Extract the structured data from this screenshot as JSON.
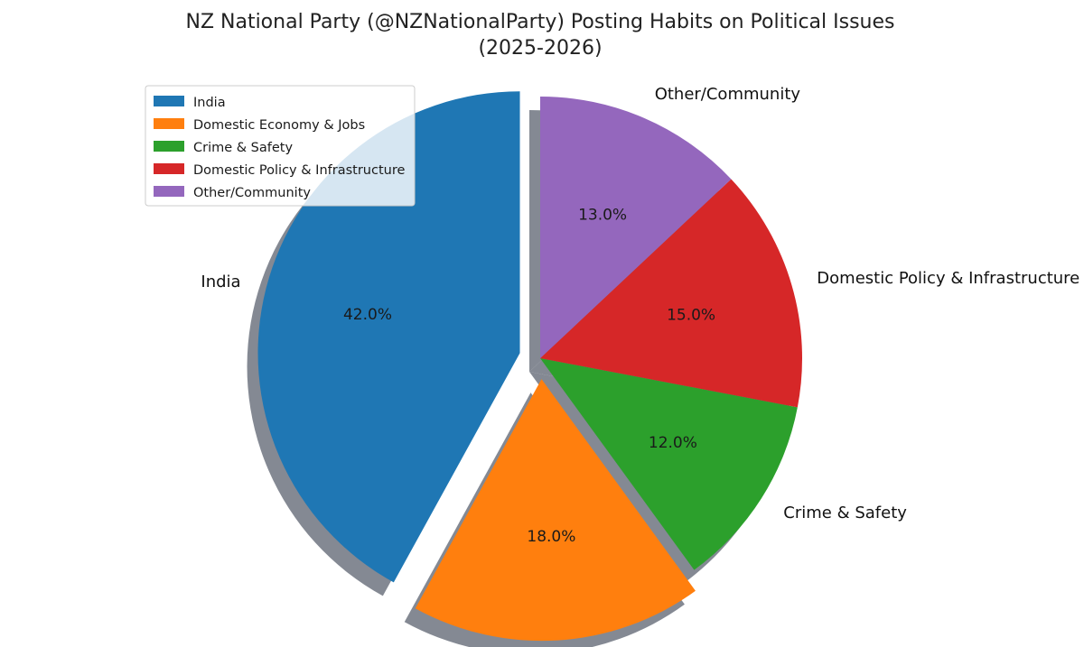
{
  "chart_data": {
    "type": "pie",
    "title_lines": [
      "NZ National Party (@NZNationalParty) Posting Habits on Political Issues",
      "(2025-2026)"
    ],
    "categories": [
      "India",
      "Domestic Economy & Jobs",
      "Crime & Safety",
      "Domestic Policy & Infrastructure",
      "Other/Community"
    ],
    "values": [
      42.0,
      18.0,
      12.0,
      15.0,
      13.0
    ],
    "value_labels": [
      "42.0%",
      "18.0%",
      "12.0%",
      "15.0%",
      "13.0%"
    ],
    "colors": [
      "#1f77b4",
      "#ff7f0e",
      "#2ca02c",
      "#d62728",
      "#9467bd"
    ],
    "exploded": [
      "India",
      "Domestic Economy & Jobs"
    ],
    "start_angle_deg": 90,
    "direction": "counterclockwise",
    "shadow": true,
    "legend": {
      "placement": "upper-left",
      "entries": [
        "India",
        "Domestic Economy & Jobs",
        "Crime & Safety",
        "Domestic Policy & Infrastructure",
        "Other/Community"
      ]
    }
  }
}
